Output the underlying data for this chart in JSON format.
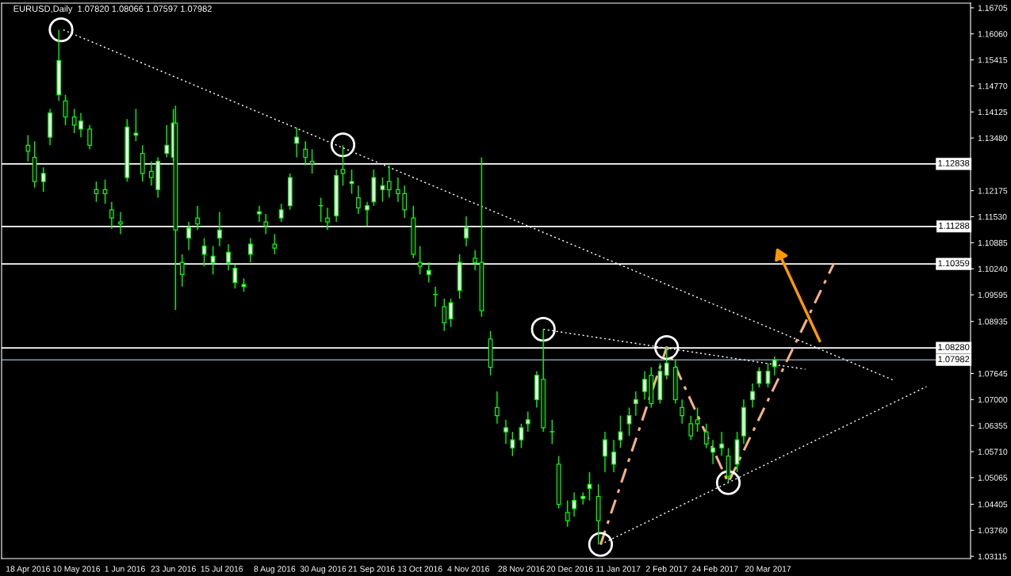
{
  "chart_data": {
    "type": "candlestick",
    "title": "EURUSD,Daily  1.07820 1.08066 1.07597 1.07982",
    "xlim": [
      "2016-04-06",
      "2017-06-20"
    ],
    "ylim": [
      1.0306,
      1.1682
    ],
    "grid": false,
    "legend": false,
    "xticks": [
      {
        "value": "2016-04-18",
        "label": "18 Apr 2016"
      },
      {
        "value": "2016-05-10",
        "label": "10 May 2016"
      },
      {
        "value": "2016-06-01",
        "label": "1 Jun 2016"
      },
      {
        "value": "2016-06-23",
        "label": "23 Jun 2016"
      },
      {
        "value": "2016-07-15",
        "label": "15 Jul 2016"
      },
      {
        "value": "2016-08-08",
        "label": "8 Aug 2016"
      },
      {
        "value": "2016-08-30",
        "label": "30 Aug 2016"
      },
      {
        "value": "2016-09-21",
        "label": "21 Sep 2016"
      },
      {
        "value": "2016-10-13",
        "label": "13 Oct 2016"
      },
      {
        "value": "2016-11-04",
        "label": "4 Nov 2016"
      },
      {
        "value": "2016-11-28",
        "label": "28 Nov 2016"
      },
      {
        "value": "2016-12-20",
        "label": "20 Dec 2016"
      },
      {
        "value": "2017-01-11",
        "label": "11 Jan 2017"
      },
      {
        "value": "2017-02-02",
        "label": "2 Feb 2017"
      },
      {
        "value": "2017-02-24",
        "label": "24 Feb 2017"
      },
      {
        "value": "2017-03-20",
        "label": "20 Mar 2017"
      }
    ],
    "yticks": [
      {
        "value": 1.16705,
        "label": "1.16705"
      },
      {
        "value": 1.1606,
        "label": "1.16060"
      },
      {
        "value": 1.15415,
        "label": "1.15415"
      },
      {
        "value": 1.1477,
        "label": "1.14770"
      },
      {
        "value": 1.14125,
        "label": "1.14125"
      },
      {
        "value": 1.1348,
        "label": "1.13480"
      },
      {
        "value": 1.12175,
        "label": "1.12175"
      },
      {
        "value": 1.1153,
        "label": "1.11530"
      },
      {
        "value": 1.10885,
        "label": "1.10885"
      },
      {
        "value": 1.1024,
        "label": "1.10240"
      },
      {
        "value": 1.09595,
        "label": "1.09595"
      },
      {
        "value": 1.08935,
        "label": "1.08935"
      },
      {
        "value": 1.07645,
        "label": "1.07645"
      },
      {
        "value": 1.07,
        "label": "1.07000"
      },
      {
        "value": 1.06355,
        "label": "1.06355"
      },
      {
        "value": 1.0571,
        "label": "1.05710"
      },
      {
        "value": 1.05065,
        "label": "1.05065"
      },
      {
        "value": 1.04405,
        "label": "1.04405"
      },
      {
        "value": 1.0376,
        "label": "1.03760"
      },
      {
        "value": 1.03115,
        "label": "1.03115"
      }
    ],
    "ref_lines": [
      {
        "axis": "y",
        "value": 1.12838,
        "label": "1.12838",
        "color": "#ffffff"
      },
      {
        "axis": "y",
        "value": 1.11288,
        "label": "1.11288",
        "color": "#ffffff"
      },
      {
        "axis": "y",
        "value": 1.10359,
        "label": "1.10359",
        "color": "#ffffff"
      },
      {
        "axis": "y",
        "value": 1.0828,
        "label": "1.08280",
        "color": "#ffffff"
      },
      {
        "axis": "y",
        "value": 1.07982,
        "label": "1.07982",
        "color": "#8899aa"
      }
    ],
    "series": [
      {
        "color": "#00ff00",
        "x": [
          "2016-04-18",
          "2016-04-21",
          "2016-04-25",
          "2016-04-28",
          "2016-05-02",
          "2016-05-05",
          "2016-05-09",
          "2016-05-12",
          "2016-05-16",
          "2016-05-19",
          "2016-05-23",
          "2016-05-26",
          "2016-05-30",
          "2016-06-02",
          "2016-06-06",
          "2016-06-09",
          "2016-06-13",
          "2016-06-16",
          "2016-06-20",
          "2016-06-23",
          "2016-06-24",
          "2016-06-27",
          "2016-06-30",
          "2016-07-04",
          "2016-07-07",
          "2016-07-11",
          "2016-07-14",
          "2016-07-18",
          "2016-07-21",
          "2016-07-25",
          "2016-07-28",
          "2016-08-01",
          "2016-08-04",
          "2016-08-08",
          "2016-08-11",
          "2016-08-15",
          "2016-08-18",
          "2016-08-22",
          "2016-08-25",
          "2016-08-29",
          "2016-09-01",
          "2016-09-05",
          "2016-09-08",
          "2016-09-12",
          "2016-09-15",
          "2016-09-19",
          "2016-09-22",
          "2016-09-26",
          "2016-09-29",
          "2016-10-03",
          "2016-10-06",
          "2016-10-10",
          "2016-10-13",
          "2016-10-17",
          "2016-10-20",
          "2016-10-24",
          "2016-10-27",
          "2016-10-31",
          "2016-11-03",
          "2016-11-07",
          "2016-11-10",
          "2016-11-14",
          "2016-11-17",
          "2016-11-21",
          "2016-11-24",
          "2016-11-28",
          "2016-12-01",
          "2016-12-05",
          "2016-12-08",
          "2016-12-12",
          "2016-12-15",
          "2016-12-19",
          "2016-12-22",
          "2016-12-26",
          "2016-12-29",
          "2017-01-02",
          "2017-01-05",
          "2017-01-09",
          "2017-01-12",
          "2017-01-16",
          "2017-01-19",
          "2017-01-23",
          "2017-01-26",
          "2017-01-30",
          "2017-02-02",
          "2017-02-06",
          "2017-02-09",
          "2017-02-13",
          "2017-02-16",
          "2017-02-20",
          "2017-02-23",
          "2017-02-27",
          "2017-03-02",
          "2017-03-06",
          "2017-03-09",
          "2017-03-13",
          "2017-03-16",
          "2017-03-20",
          "2017-03-23"
        ],
        "ohlc": [
          [
            1.133,
            1.1355,
            1.129,
            1.1315
          ],
          [
            1.13,
            1.134,
            1.1225,
            1.124
          ],
          [
            1.124,
            1.1275,
            1.1215,
            1.126
          ],
          [
            1.135,
            1.142,
            1.133,
            1.141
          ],
          [
            1.1455,
            1.1616,
            1.144,
            1.154
          ],
          [
            1.144,
            1.1455,
            1.138,
            1.14
          ],
          [
            1.14,
            1.142,
            1.136,
            1.138
          ],
          [
            1.137,
            1.141,
            1.135,
            1.139
          ],
          [
            1.137,
            1.138,
            1.132,
            1.133
          ],
          [
            1.122,
            1.124,
            1.119,
            1.121
          ],
          [
            1.122,
            1.1245,
            1.1185,
            1.121
          ],
          [
            1.117,
            1.119,
            1.1123,
            1.115
          ],
          [
            1.114,
            1.1165,
            1.111,
            1.1135
          ],
          [
            1.125,
            1.1395,
            1.124,
            1.1375
          ],
          [
            1.1355,
            1.142,
            1.134,
            1.136
          ],
          [
            1.131,
            1.133,
            1.124,
            1.126
          ],
          [
            1.1265,
            1.129,
            1.123,
            1.125
          ],
          [
            1.122,
            1.13,
            1.12,
            1.129
          ],
          [
            1.131,
            1.138,
            1.13,
            1.133
          ],
          [
            1.13,
            1.142,
            1.129,
            1.1385
          ],
          [
            1.1385,
            1.1428,
            1.0922,
            1.112
          ],
          [
            1.104,
            1.106,
            1.098,
            1.101
          ],
          [
            1.11,
            1.114,
            1.107,
            1.1125
          ],
          [
            1.115,
            1.118,
            1.112,
            1.1135
          ],
          [
            1.106,
            1.11,
            1.103,
            1.108
          ],
          [
            1.104,
            1.108,
            1.101,
            1.1055
          ],
          [
            1.11,
            1.1165,
            1.108,
            1.112
          ],
          [
            1.104,
            1.1085,
            1.102,
            1.1065
          ],
          [
            1.099,
            1.1035,
            1.0975,
            1.1025
          ],
          [
            1.098,
            1.1,
            1.0967,
            1.0985
          ],
          [
            1.106,
            1.11,
            1.104,
            1.1085
          ],
          [
            1.116,
            1.118,
            1.114,
            1.1165
          ],
          [
            1.114,
            1.116,
            1.111,
            1.113
          ],
          [
            1.1085,
            1.111,
            1.106,
            1.1075
          ],
          [
            1.115,
            1.1185,
            1.114,
            1.117
          ],
          [
            1.118,
            1.126,
            1.117,
            1.125
          ],
          [
            1.1335,
            1.1374,
            1.13,
            1.135
          ],
          [
            1.132,
            1.134,
            1.128,
            1.13
          ],
          [
            1.129,
            1.132,
            1.126,
            1.1285
          ],
          [
            1.118,
            1.12,
            1.114,
            1.118
          ],
          [
            1.115,
            1.1175,
            1.112,
            1.114
          ],
          [
            1.1155,
            1.127,
            1.114,
            1.1255
          ],
          [
            1.127,
            1.133,
            1.123,
            1.126
          ],
          [
            1.1235,
            1.127,
            1.121,
            1.124
          ],
          [
            1.12,
            1.123,
            1.116,
            1.1175
          ],
          [
            1.117,
            1.119,
            1.113,
            1.118
          ],
          [
            1.119,
            1.127,
            1.118,
            1.125
          ],
          [
            1.122,
            1.125,
            1.119,
            1.123
          ],
          [
            1.124,
            1.128,
            1.12,
            1.122
          ],
          [
            1.122,
            1.125,
            1.119,
            1.121
          ],
          [
            1.121,
            1.123,
            1.115,
            1.117
          ],
          [
            1.115,
            1.118,
            1.105,
            1.106
          ],
          [
            1.104,
            1.108,
            1.101,
            1.103
          ],
          [
            1.101,
            1.104,
            1.099,
            1.102
          ],
          [
            1.096,
            1.098,
            1.093,
            1.096
          ],
          [
            1.093,
            1.095,
            1.087,
            1.089
          ],
          [
            1.09,
            1.095,
            1.088,
            1.094
          ],
          [
            1.097,
            1.106,
            1.095,
            1.104
          ],
          [
            1.11,
            1.1154,
            1.108,
            1.1125
          ],
          [
            1.105,
            1.107,
            1.102,
            1.104
          ],
          [
            1.104,
            1.13,
            1.0905,
            1.092
          ],
          [
            1.085,
            1.087,
            1.076,
            1.078
          ],
          [
            1.068,
            1.072,
            1.064,
            1.066
          ],
          [
            1.062,
            1.065,
            1.059,
            1.063
          ],
          [
            1.058,
            1.062,
            1.056,
            1.06
          ],
          [
            1.06,
            1.064,
            1.058,
            1.063
          ],
          [
            1.064,
            1.067,
            1.062,
            1.065
          ],
          [
            1.07,
            1.077,
            1.068,
            1.076
          ],
          [
            1.075,
            1.0874,
            1.062,
            1.063
          ],
          [
            1.062,
            1.065,
            1.059,
            1.062
          ],
          [
            1.054,
            1.056,
            1.043,
            1.044
          ],
          [
            1.042,
            1.045,
            1.0385,
            1.04
          ],
          [
            1.043,
            1.047,
            1.041,
            1.045
          ],
          [
            1.0455,
            1.047,
            1.044,
            1.046
          ],
          [
            1.048,
            1.052,
            1.045,
            1.049
          ],
          [
            1.046,
            1.049,
            1.0341,
            1.04
          ],
          [
            1.056,
            1.062,
            1.052,
            1.06
          ],
          [
            1.054,
            1.06,
            1.052,
            1.057
          ],
          [
            1.06,
            1.066,
            1.058,
            1.062
          ],
          [
            1.064,
            1.068,
            1.061,
            1.066
          ],
          [
            1.069,
            1.072,
            1.066,
            1.07
          ],
          [
            1.072,
            1.077,
            1.07,
            1.075
          ],
          [
            1.076,
            1.078,
            1.068,
            1.069
          ],
          [
            1.07,
            1.079,
            1.069,
            1.077
          ],
          [
            1.076,
            1.0829,
            1.075,
            1.079
          ],
          [
            1.078,
            1.08,
            1.069,
            1.07
          ],
          [
            1.068,
            1.07,
            1.064,
            1.066
          ],
          [
            1.064,
            1.066,
            1.06,
            1.061
          ],
          [
            1.065,
            1.068,
            1.062,
            1.064
          ],
          [
            1.062,
            1.064,
            1.058,
            1.059
          ],
          [
            1.057,
            1.06,
            1.054,
            1.058
          ],
          [
            1.058,
            1.062,
            1.056,
            1.059
          ],
          [
            1.056,
            1.058,
            1.0494,
            1.051
          ],
          [
            1.054,
            1.062,
            1.052,
            1.06
          ],
          [
            1.061,
            1.07,
            1.059,
            1.068
          ],
          [
            1.07,
            1.074,
            1.068,
            1.072
          ],
          [
            1.074,
            1.078,
            1.073,
            1.077
          ],
          [
            1.074,
            1.079,
            1.073,
            1.077
          ],
          [
            1.0782,
            1.08066,
            1.07597,
            1.07982
          ]
        ]
      },
      {
        "type": "line",
        "color": "#ffffff",
        "line_style": "dotted",
        "x": [
          "2016-05-04",
          "2017-05-16"
        ],
        "values": [
          1.1616,
          1.0748
        ]
      },
      {
        "type": "line",
        "color": "#ffffff",
        "line_style": "dotted",
        "x": [
          "2016-12-08",
          "2017-04-06"
        ],
        "values": [
          1.0874,
          1.0775
        ]
      },
      {
        "type": "line",
        "color": "#ffffff",
        "line_style": "dotted",
        "x": [
          "2017-01-03",
          "2017-05-31"
        ],
        "values": [
          1.0341,
          1.0732
        ]
      },
      {
        "type": "line",
        "color": "#f4b183",
        "line_style": "dashed",
        "x": [
          "2017-01-03",
          "2017-02-02",
          "2017-03-02",
          "2017-04-19"
        ],
        "values": [
          1.0341,
          1.0829,
          1.0494,
          1.1038
        ]
      },
      {
        "type": "scatter",
        "color": "#ffffff",
        "marker": "circle",
        "x": [
          "2016-05-03",
          "2016-09-08",
          "2016-12-08",
          "2017-02-02",
          "2017-01-03",
          "2017-03-02"
        ],
        "values": [
          1.1616,
          1.1331,
          1.0874,
          1.0829,
          1.0341,
          1.0494
        ]
      }
    ]
  }
}
